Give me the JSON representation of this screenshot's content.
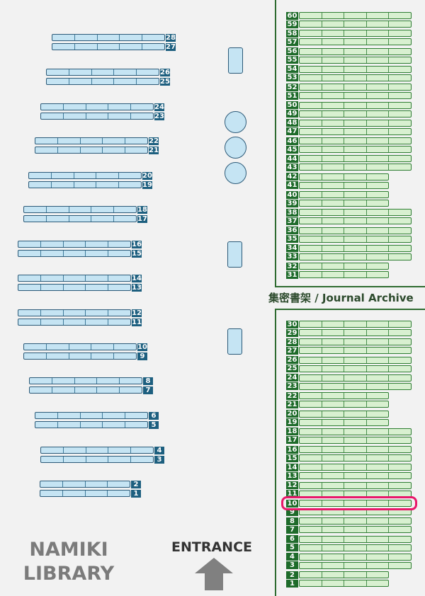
{
  "library_name": [
    "NAMIKI",
    "LIBRARY"
  ],
  "entrance_label": "ENTRANCE",
  "archive_label": "集密書架 / Journal Archive",
  "highlighted_shelf": "10",
  "colors": {
    "background": "#f2f2f2",
    "open_shelf_fill": "#c5e4f3",
    "open_shelf_border": "#2c5a78",
    "open_shelf_label": "#1d5f7f",
    "archive_shelf_fill": "#d8f0d0",
    "archive_shelf_border": "#2e7d32",
    "archive_shelf_label": "#1e6b2a",
    "highlight": "#e8186a"
  },
  "open_shelves": [
    {
      "label": "28",
      "sections": 5
    },
    {
      "label": "27",
      "sections": 5
    },
    {
      "label": "26",
      "sections": 5
    },
    {
      "label": "25",
      "sections": 5
    },
    {
      "label": "24",
      "sections": 5
    },
    {
      "label": "23",
      "sections": 5
    },
    {
      "label": "22",
      "sections": 5
    },
    {
      "label": "21",
      "sections": 5
    },
    {
      "label": "20",
      "sections": 5
    },
    {
      "label": "19",
      "sections": 5
    },
    {
      "label": "18",
      "sections": 5
    },
    {
      "label": "17",
      "sections": 5
    },
    {
      "label": "16",
      "sections": 5
    },
    {
      "label": "15",
      "sections": 5
    },
    {
      "label": "14",
      "sections": 5
    },
    {
      "label": "13",
      "sections": 5
    },
    {
      "label": "12",
      "sections": 5
    },
    {
      "label": "11",
      "sections": 5
    },
    {
      "label": "10",
      "sections": 5
    },
    {
      "label": "9",
      "sections": 5
    },
    {
      "label": "8",
      "sections": 5
    },
    {
      "label": "7",
      "sections": 5
    },
    {
      "label": "6",
      "sections": 5
    },
    {
      "label": "5",
      "sections": 5
    },
    {
      "label": "4",
      "sections": 5
    },
    {
      "label": "3",
      "sections": 5
    },
    {
      "label": "2",
      "sections": 4
    },
    {
      "label": "1",
      "sections": 4
    }
  ],
  "archive_upper": [
    {
      "label": "60",
      "sections": 5
    },
    {
      "label": "59",
      "sections": 5
    },
    {
      "label": "58",
      "sections": 5
    },
    {
      "label": "57",
      "sections": 5
    },
    {
      "label": "56",
      "sections": 5
    },
    {
      "label": "55",
      "sections": 5
    },
    {
      "label": "54",
      "sections": 5
    },
    {
      "label": "53",
      "sections": 5
    },
    {
      "label": "52",
      "sections": 5
    },
    {
      "label": "51",
      "sections": 5
    },
    {
      "label": "50",
      "sections": 5
    },
    {
      "label": "49",
      "sections": 5
    },
    {
      "label": "48",
      "sections": 5
    },
    {
      "label": "47",
      "sections": 5
    },
    {
      "label": "46",
      "sections": 5
    },
    {
      "label": "45",
      "sections": 5
    },
    {
      "label": "44",
      "sections": 5
    },
    {
      "label": "43",
      "sections": 5
    },
    {
      "label": "42",
      "sections": 4
    },
    {
      "label": "41",
      "sections": 4
    },
    {
      "label": "40",
      "sections": 4
    },
    {
      "label": "39",
      "sections": 4
    },
    {
      "label": "38",
      "sections": 5
    },
    {
      "label": "37",
      "sections": 5
    },
    {
      "label": "36",
      "sections": 5
    },
    {
      "label": "35",
      "sections": 5
    },
    {
      "label": "34",
      "sections": 5
    },
    {
      "label": "33",
      "sections": 5
    },
    {
      "label": "32",
      "sections": 4
    },
    {
      "label": "31",
      "sections": 4
    }
  ],
  "archive_lower": [
    {
      "label": "30",
      "sections": 5
    },
    {
      "label": "29",
      "sections": 5
    },
    {
      "label": "28",
      "sections": 5
    },
    {
      "label": "27",
      "sections": 5
    },
    {
      "label": "26",
      "sections": 5
    },
    {
      "label": "25",
      "sections": 5
    },
    {
      "label": "24",
      "sections": 5
    },
    {
      "label": "23",
      "sections": 5
    },
    {
      "label": "22",
      "sections": 4
    },
    {
      "label": "21",
      "sections": 4
    },
    {
      "label": "20",
      "sections": 4
    },
    {
      "label": "19",
      "sections": 4
    },
    {
      "label": "18",
      "sections": 5
    },
    {
      "label": "17",
      "sections": 5
    },
    {
      "label": "16",
      "sections": 5
    },
    {
      "label": "15",
      "sections": 5
    },
    {
      "label": "14",
      "sections": 5
    },
    {
      "label": "13",
      "sections": 5
    },
    {
      "label": "12",
      "sections": 5
    },
    {
      "label": "11",
      "sections": 5
    },
    {
      "label": "10",
      "sections": 5
    },
    {
      "label": "9",
      "sections": 5
    },
    {
      "label": "8",
      "sections": 5
    },
    {
      "label": "7",
      "sections": 5
    },
    {
      "label": "6",
      "sections": 5
    },
    {
      "label": "5",
      "sections": 5
    },
    {
      "label": "4",
      "sections": 5
    },
    {
      "label": "3",
      "sections": 5
    },
    {
      "label": "2",
      "sections": 4
    },
    {
      "label": "1",
      "sections": 4
    }
  ]
}
